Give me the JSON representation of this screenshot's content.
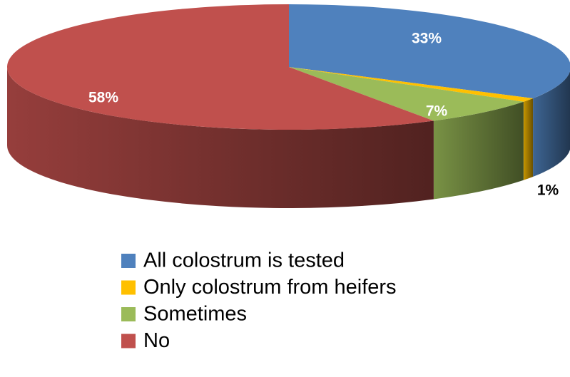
{
  "chart_data": {
    "type": "pie",
    "view": "3d",
    "categories": [
      "All colostrum is tested",
      "Only colostrum from heifers",
      "Sometimes",
      "No"
    ],
    "values": [
      33,
      1,
      7,
      58
    ],
    "value_labels": [
      "33%",
      "1%",
      "7%",
      "58%"
    ],
    "colors": [
      "#4f81bd",
      "#ffc000",
      "#9bbb59",
      "#c0504d"
    ],
    "legend": "bottom"
  }
}
